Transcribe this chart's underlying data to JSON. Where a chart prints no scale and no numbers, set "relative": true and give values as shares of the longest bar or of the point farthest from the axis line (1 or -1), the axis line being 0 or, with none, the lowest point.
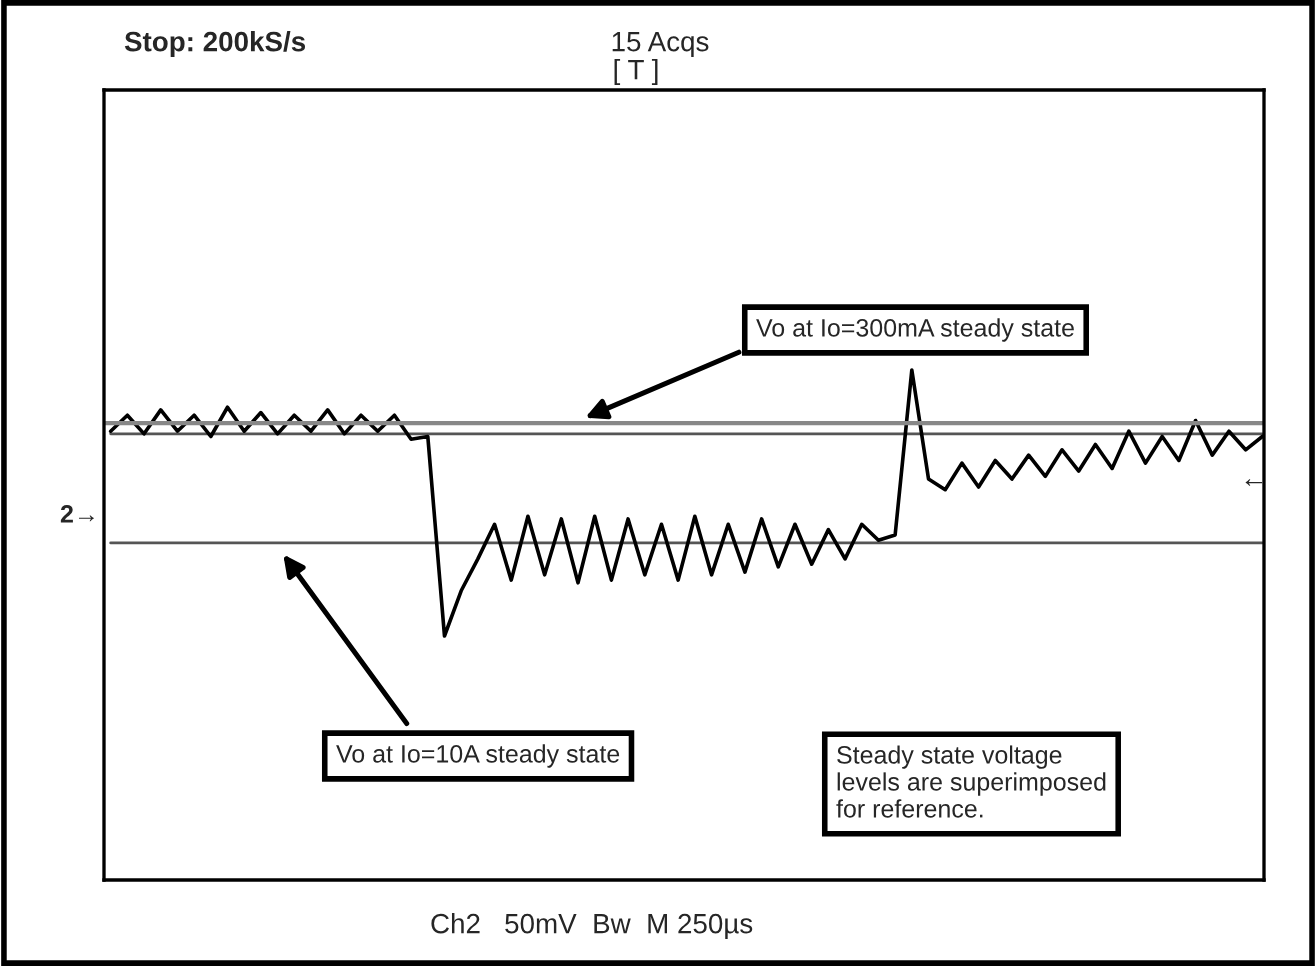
{
  "chart_data": {
    "type": "line",
    "relative": true,
    "legend": false,
    "marker": "none",
    "line_style": "solid",
    "categories": [
      null,
      null,
      null,
      null,
      null,
      null,
      null,
      null,
      null,
      null,
      null,
      null,
      null,
      null,
      null,
      null,
      null,
      null,
      null,
      null,
      null,
      null,
      null,
      null,
      null,
      null,
      null,
      null,
      null,
      null,
      null,
      null,
      null,
      null,
      null,
      null,
      null,
      null,
      null,
      null,
      null,
      null,
      null,
      null,
      null,
      null,
      null,
      null,
      null,
      null,
      null,
      null,
      null,
      null,
      null,
      null,
      null,
      null,
      null,
      null,
      null,
      null,
      null,
      null,
      null,
      null,
      null,
      null,
      null,
      null
    ],
    "series": [
      {
        "color": "#555555",
        "values": [
          0.76,
          0.76,
          0.76,
          0.76,
          0.76,
          0.76,
          0.76,
          0.76,
          0.76,
          0.76,
          0.76,
          0.76,
          0.76,
          0.76,
          0.76,
          0.76,
          0.76,
          0.76,
          0.76,
          0.76,
          0.76,
          0.76,
          0.76,
          0.76,
          0.76,
          0.76,
          0.76,
          0.76,
          0.76,
          0.76,
          0.76,
          0.76,
          0.76,
          0.76,
          0.76,
          0.76,
          0.76,
          0.76,
          0.76,
          0.76,
          0.76,
          0.76,
          0.76,
          0.76,
          0.76,
          0.76,
          0.76,
          0.76,
          0.76,
          0.76,
          0.76,
          0.76,
          0.76,
          0.76,
          0.76,
          0.76,
          0.76,
          0.76,
          0.76,
          0.76,
          0.76,
          0.76,
          0.76,
          0.76,
          0.76,
          0.76,
          0.76,
          0.76,
          0.76,
          0.76
        ]
      },
      {
        "color": "#555555",
        "values": [
          0.35,
          0.35,
          0.35,
          0.35,
          0.35,
          0.35,
          0.35,
          0.35,
          0.35,
          0.35,
          0.35,
          0.35,
          0.35,
          0.35,
          0.35,
          0.35,
          0.35,
          0.35,
          0.35,
          0.35,
          0.35,
          0.35,
          0.35,
          0.35,
          0.35,
          0.35,
          0.35,
          0.35,
          0.35,
          0.35,
          0.35,
          0.35,
          0.35,
          0.35,
          0.35,
          0.35,
          0.35,
          0.35,
          0.35,
          0.35,
          0.35,
          0.35,
          0.35,
          0.35,
          0.35,
          0.35,
          0.35,
          0.35,
          0.35,
          0.35,
          0.35,
          0.35,
          0.35,
          0.35,
          0.35,
          0.35,
          0.35,
          0.35,
          0.35,
          0.35,
          0.35,
          0.35,
          0.35,
          0.35,
          0.35,
          0.35,
          0.35,
          0.35,
          0.35,
          0.35
        ]
      },
      {
        "color": "#000000",
        "values": [
          0.77,
          0.83,
          0.76,
          0.85,
          0.77,
          0.83,
          0.75,
          0.86,
          0.77,
          0.84,
          0.76,
          0.83,
          0.77,
          0.85,
          0.76,
          0.83,
          0.77,
          0.83,
          0.74,
          0.75,
          0,
          0.17,
          0.29,
          0.42,
          0.21,
          0.45,
          0.23,
          0.44,
          0.2,
          0.45,
          0.21,
          0.44,
          0.23,
          0.42,
          0.21,
          0.45,
          0.23,
          0.42,
          0.24,
          0.44,
          0.26,
          0.42,
          0.27,
          0.4,
          0.29,
          0.42,
          0.36,
          0.38,
          1,
          0.59,
          0.55,
          0.65,
          0.56,
          0.66,
          0.59,
          0.68,
          0.6,
          0.7,
          0.62,
          0.72,
          0.63,
          0.77,
          0.65,
          0.75,
          0.66,
          0.81,
          0.68,
          0.77,
          0.7,
          0.75
        ]
      }
    ],
    "ref_lines": [
      {
        "axis": "y",
        "value": 0.8,
        "label": null,
        "color": "#888888",
        "line_style": "solid"
      }
    ],
    "annotations": [
      "Stop: 200kS/s",
      "15 Acqs",
      "[ T ]",
      "2→",
      "←",
      "Ch2   50mV  Bw  M 250µs",
      "Vo at Io=300mA steady state",
      "Vo at Io=10A steady state",
      "Steady state voltage\nlevels are superimposed\nfor reference."
    ]
  }
}
